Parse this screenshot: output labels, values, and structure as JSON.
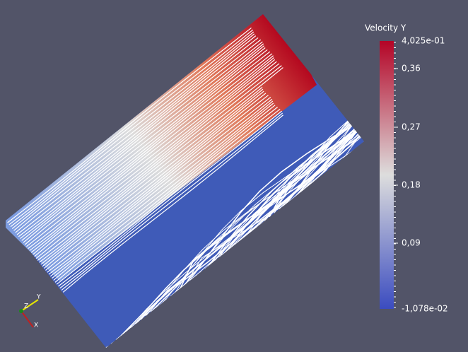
{
  "colorbar": {
    "title": "Velocity Y",
    "max_label": "4,025e-01",
    "ticks": [
      "0,36",
      "0,27",
      "0,18",
      "0,09"
    ],
    "min_label": "-1,078e-02"
  },
  "axes": {
    "y": "Y",
    "z": "Z",
    "x": "X"
  }
}
